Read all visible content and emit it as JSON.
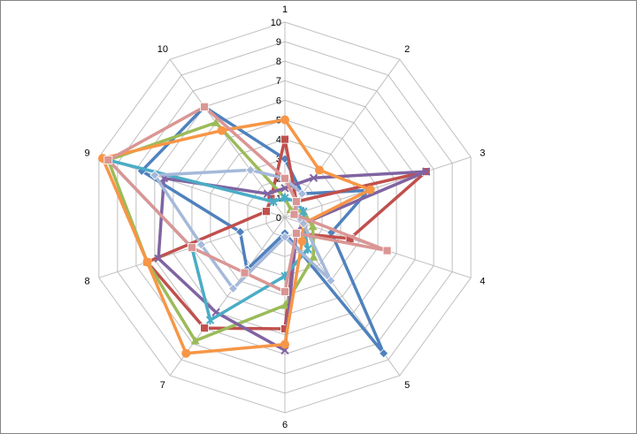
{
  "chart_data": {
    "type": "radar",
    "categories": [
      "1",
      "2",
      "3",
      "4",
      "5",
      "6",
      "7",
      "8",
      "9",
      "10"
    ],
    "ylim": [
      0,
      10
    ],
    "yticks": [
      0,
      1,
      2,
      3,
      4,
      5,
      6,
      7,
      8,
      9,
      10
    ],
    "grid": true,
    "series": [
      {
        "color": "#4f81bd",
        "marker": "diamond",
        "values": [
          3,
          1.5,
          4.5,
          2.5,
          8.6,
          0.8,
          3.3,
          2.4,
          7.7,
          7
        ]
      },
      {
        "color": "#c0504d",
        "marker": "square",
        "values": [
          4,
          1,
          7.6,
          3.5,
          1,
          5.7,
          7,
          7.4,
          1,
          1.2
        ]
      },
      {
        "color": "#9bbb59",
        "marker": "triangle",
        "values": [
          1,
          0.5,
          1,
          1.5,
          2.5,
          4.5,
          7.8,
          7.4,
          9.5,
          6
        ]
      },
      {
        "color": "#8064a2",
        "marker": "x",
        "values": [
          1.5,
          2.5,
          7.6,
          1,
          1,
          6.8,
          6,
          6.8,
          6.5,
          1.5
        ]
      },
      {
        "color": "#4bacc6",
        "marker": "star",
        "values": [
          1,
          1,
          1,
          1,
          2,
          3,
          6.5,
          5,
          9.5,
          1
        ]
      },
      {
        "color": "#f79646",
        "marker": "circle",
        "values": [
          5,
          3,
          4.6,
          1,
          1.5,
          6.5,
          8.6,
          7.4,
          9.8,
          5.5
        ]
      },
      {
        "color": "#a5b9da",
        "marker": "diamond",
        "values": [
          2,
          1.5,
          0.5,
          1,
          4,
          1,
          4.5,
          4.5,
          7,
          3
        ]
      },
      {
        "color": "#da9694",
        "marker": "square",
        "values": [
          2,
          1,
          0.5,
          5.5,
          1,
          3.8,
          3.5,
          5,
          9.5,
          7
        ]
      }
    ]
  }
}
